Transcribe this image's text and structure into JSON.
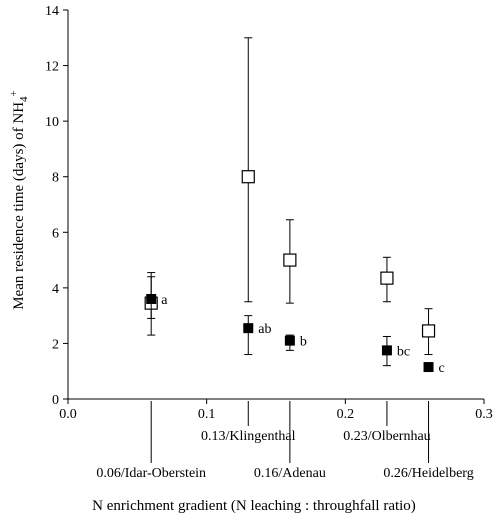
{
  "chart_data": {
    "type": "scatter",
    "xlabel": "N enrichment gradient (N leaching : throughfall ratio)",
    "ylabel": "Mean residence time (days) of NH",
    "ylabel_sub": "4",
    "ylabel_sup": "+",
    "xlim": [
      0.0,
      0.3
    ],
    "ylim": [
      0,
      14
    ],
    "x_ticks": [
      {
        "value": 0.0,
        "label": "0.0"
      },
      {
        "value": 0.1,
        "label": "0.1"
      },
      {
        "value": 0.2,
        "label": "0.2"
      },
      {
        "value": 0.3,
        "label": "0.3"
      }
    ],
    "y_ticks": [
      {
        "value": 0,
        "label": "0"
      },
      {
        "value": 2,
        "label": "2"
      },
      {
        "value": 4,
        "label": "4"
      },
      {
        "value": 6,
        "label": "6"
      },
      {
        "value": 8,
        "label": "8"
      },
      {
        "value": 10,
        "label": "10"
      },
      {
        "value": 12,
        "label": "12"
      },
      {
        "value": 14,
        "label": "14"
      }
    ],
    "sites": [
      {
        "x": 0.06,
        "label": "0.06/Idar-Oberstein",
        "row": 2
      },
      {
        "x": 0.13,
        "label": "0.13/Klingenthal",
        "row": 1
      },
      {
        "x": 0.16,
        "label": "0.16/Adenau",
        "row": 2
      },
      {
        "x": 0.23,
        "label": "0.23/Olbernhau",
        "row": 1
      },
      {
        "x": 0.26,
        "label": "0.26/Heidelberg",
        "row": 2
      }
    ],
    "series": [
      {
        "marker": "open-square",
        "points": [
          {
            "x": 0.06,
            "y": 3.45,
            "err_low": 2.3,
            "err_high": 4.4
          },
          {
            "x": 0.13,
            "y": 8.0,
            "err_low": 3.5,
            "err_high": 13.0
          },
          {
            "x": 0.16,
            "y": 5.0,
            "err_low": 3.45,
            "err_high": 6.45
          },
          {
            "x": 0.23,
            "y": 4.35,
            "err_low": 3.5,
            "err_high": 5.1
          },
          {
            "x": 0.26,
            "y": 2.45,
            "err_low": 1.6,
            "err_high": 3.25
          }
        ]
      },
      {
        "marker": "filled-square",
        "points": [
          {
            "x": 0.06,
            "y": 3.6,
            "err_low": 2.9,
            "err_high": 4.55,
            "label": "a"
          },
          {
            "x": 0.13,
            "y": 2.55,
            "err_low": 1.6,
            "err_high": 3.0,
            "label": "ab"
          },
          {
            "x": 0.16,
            "y": 2.1,
            "err_low": 1.75,
            "err_high": 2.3,
            "label": "b"
          },
          {
            "x": 0.23,
            "y": 1.75,
            "err_low": 1.2,
            "err_high": 2.25,
            "label": "bc"
          },
          {
            "x": 0.26,
            "y": 1.15,
            "err_low": 1.15,
            "err_high": 1.15,
            "label": "c"
          }
        ]
      }
    ]
  }
}
